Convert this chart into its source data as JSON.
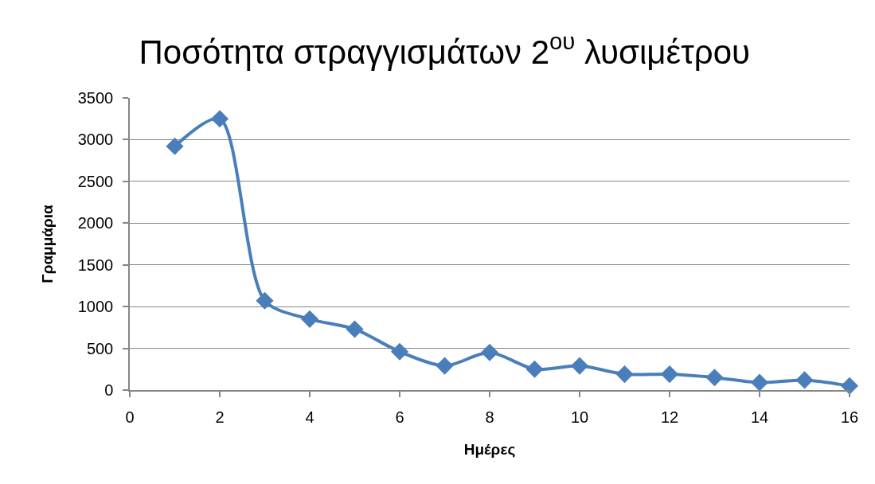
{
  "chart_data": {
    "type": "line",
    "title": "Ποσότητα στραγγισμάτων 2$^{ου}$ λυσιμέτρου",
    "xlabel": "Ημέρες",
    "ylabel": "Γραμμάρια",
    "x": [
      1,
      2,
      3,
      4,
      5,
      6,
      7,
      8,
      9,
      10,
      11,
      12,
      13,
      14,
      15,
      16
    ],
    "values": [
      2920,
      3250,
      1070,
      850,
      730,
      460,
      290,
      450,
      250,
      290,
      190,
      190,
      150,
      90,
      120,
      50
    ],
    "color": "#4a7ebb",
    "marker": "diamond",
    "line_style": "solid",
    "xlim": [
      0,
      16
    ],
    "xticks": [
      0,
      2,
      4,
      6,
      8,
      10,
      12,
      14,
      16
    ],
    "ylim": [
      0,
      3500
    ],
    "yticks": [
      0,
      500,
      1000,
      1500,
      2000,
      2500,
      3000,
      3500
    ],
    "grid": "y"
  }
}
